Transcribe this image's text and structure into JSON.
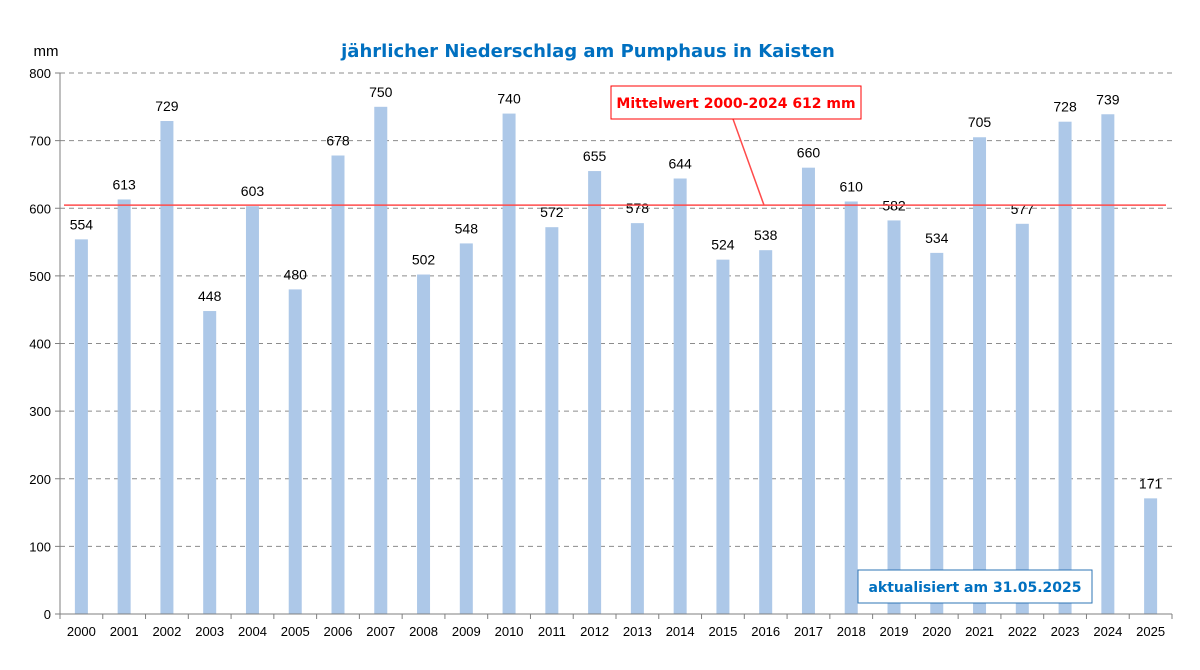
{
  "chart_data": {
    "type": "bar",
    "title": "jährlicher Niederschlag am Pumphaus in Kaisten",
    "ylabel": "mm",
    "xlabel": "",
    "ylim": [
      0,
      800
    ],
    "yticks": [
      "0",
      "100",
      "200",
      "300",
      "400",
      "500",
      "600",
      "700",
      "800"
    ],
    "grid": true,
    "categories": [
      "2000",
      "2001",
      "2002",
      "2003",
      "2004",
      "2005",
      "2006",
      "2007",
      "2008",
      "2009",
      "2010",
      "2011",
      "2012",
      "2013",
      "2014",
      "2015",
      "2016",
      "2017",
      "2018",
      "2019",
      "2020",
      "2021",
      "2022",
      "2023",
      "2024",
      "2025"
    ],
    "values": [
      554,
      613,
      729,
      448,
      603,
      480,
      678,
      750,
      502,
      548,
      740,
      572,
      655,
      578,
      644,
      524,
      538,
      660,
      610,
      582,
      534,
      705,
      577,
      728,
      739,
      171
    ],
    "bar_color": "#adc8e8",
    "reference_line": {
      "value": 612,
      "label": "Mittelwert 2000-2024  612 mm",
      "color": "#ff0000"
    },
    "annotation": {
      "text": "aktualisiert am 31.05.2025",
      "color": "#0070c0"
    }
  }
}
